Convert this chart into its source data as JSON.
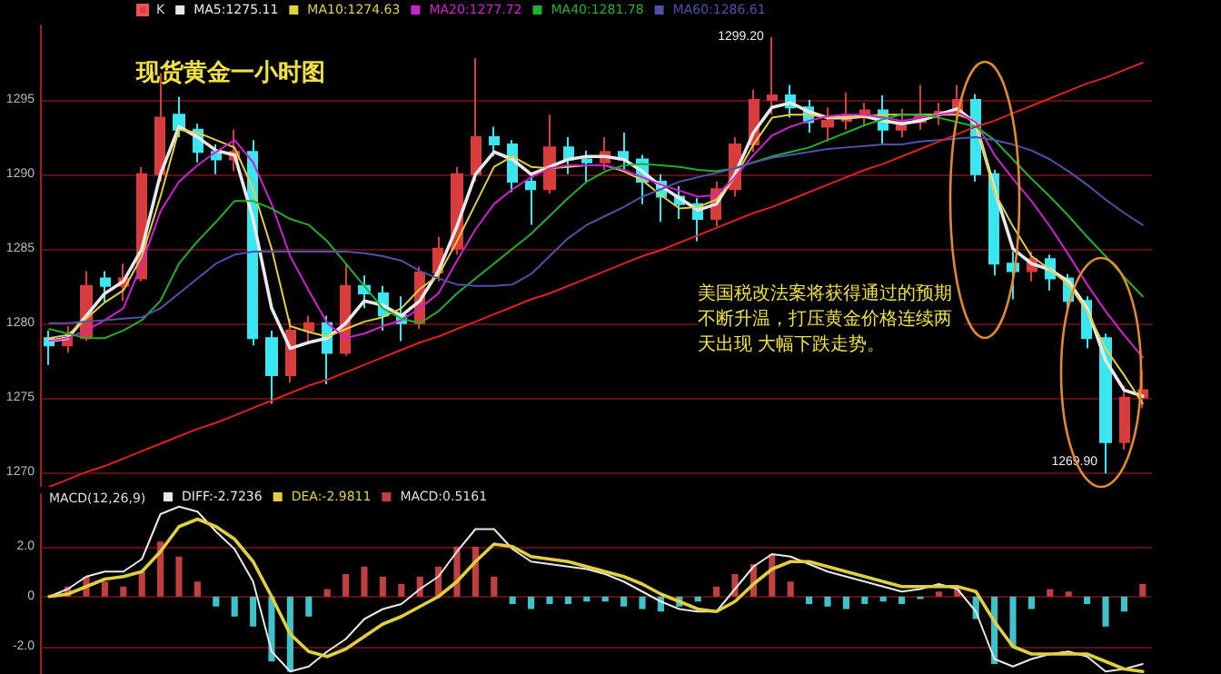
{
  "chart_data": [
    {
      "type": "candlestick",
      "title": "现货黄金一小时图",
      "categories": [
        null,
        null,
        null,
        null,
        null,
        null,
        null,
        null,
        null,
        null,
        null,
        null,
        null,
        null,
        null,
        null,
        null,
        null,
        null,
        null,
        null,
        null,
        null,
        null,
        null,
        null,
        null,
        null,
        null,
        null,
        null,
        null,
        null,
        null,
        null,
        null,
        null,
        null,
        null,
        null,
        null,
        null,
        null,
        null,
        null,
        null,
        null,
        null,
        null,
        null,
        null,
        null,
        null,
        null,
        null,
        null,
        null,
        null,
        null,
        null
      ],
      "ylim": [
        1269,
        1300
      ],
      "yticks": [
        1270,
        1275,
        1280,
        1285,
        1290,
        1295
      ],
      "grid": "y",
      "legend": "top left",
      "tick_labels": "y",
      "marker": "none",
      "line_style": "solid",
      "annotations": [
        "1299.20",
        "1269.90",
        "美国税改法案将获得通过的预期不断升温，打压黄金价格连续两天出现 大幅下跌走势。"
      ],
      "series": [
        {
          "name": "K",
          "ohlc": [
            [
              1279,
              1279.5,
              1277.2,
              1278.5
            ],
            [
              1278.5,
              1279.8,
              1278,
              1279
            ],
            [
              1279,
              1283.5,
              1278.8,
              1282.5
            ],
            [
              1283,
              1283.5,
              1281.4,
              1282.5
            ],
            [
              1282.5,
              1284,
              1281.5,
              1283
            ],
            [
              1283,
              1290.5,
              1282.8,
              1290
            ],
            [
              1290,
              1296.8,
              1289.5,
              1293.8
            ],
            [
              1294,
              1295.2,
              1292.5,
              1293
            ],
            [
              1293,
              1293.4,
              1290.8,
              1291.5
            ],
            [
              1291.5,
              1292,
              1290,
              1291
            ],
            [
              1291,
              1293,
              1290.2,
              1291.5
            ],
            [
              1291.5,
              1292.3,
              1278.5,
              1279
            ],
            [
              1279,
              1279.5,
              1274.6,
              1276.5
            ],
            [
              1276.5,
              1280.3,
              1276,
              1279.5
            ],
            [
              1279.5,
              1280.5,
              1278.8,
              1280
            ],
            [
              1280,
              1280.5,
              1275.9,
              1278
            ],
            [
              1278,
              1284,
              1277.8,
              1282.5
            ],
            [
              1282.5,
              1283.2,
              1281,
              1282
            ],
            [
              1282,
              1282.5,
              1279.5,
              1280.5
            ],
            [
              1280.5,
              1281.8,
              1278.8,
              1280
            ],
            [
              1280,
              1283.8,
              1279.6,
              1283.4
            ],
            [
              1283.4,
              1285.8,
              1282.8,
              1285
            ],
            [
              1285,
              1290.5,
              1284.6,
              1290
            ],
            [
              1290,
              1297.8,
              1289.5,
              1292.5
            ],
            [
              1292.5,
              1293.2,
              1291.2,
              1292
            ],
            [
              1292,
              1292.3,
              1288.8,
              1289.5
            ],
            [
              1289.5,
              1290,
              1286.6,
              1289
            ],
            [
              1289,
              1294,
              1288.7,
              1291.8
            ],
            [
              1291.8,
              1292.5,
              1290,
              1291
            ],
            [
              1291,
              1291.6,
              1289.5,
              1290.8
            ],
            [
              1290.8,
              1292.5,
              1290.3,
              1291.5
            ],
            [
              1291.5,
              1292.8,
              1290.2,
              1291
            ],
            [
              1291,
              1291.3,
              1288,
              1289.5
            ],
            [
              1289.5,
              1290,
              1286.8,
              1288.5
            ],
            [
              1288.5,
              1289.2,
              1287,
              1288
            ],
            [
              1288,
              1288.4,
              1285.5,
              1287
            ],
            [
              1287,
              1289.5,
              1286.5,
              1289
            ],
            [
              1289,
              1292.5,
              1288.5,
              1292
            ],
            [
              1292,
              1295.7,
              1291.5,
              1295
            ],
            [
              1295,
              1299.2,
              1294,
              1295.3
            ],
            [
              1295.3,
              1296,
              1293.8,
              1294.5
            ],
            [
              1294.5,
              1295,
              1292.8,
              1293.5
            ],
            [
              1293.2,
              1294.5,
              1292.2,
              1293.6
            ],
            [
              1293.6,
              1295.5,
              1293,
              1294
            ],
            [
              1294,
              1294.8,
              1293.2,
              1294.3
            ],
            [
              1294.3,
              1295.3,
              1292,
              1293
            ],
            [
              1293,
              1294.4,
              1292.5,
              1293.5
            ],
            [
              1293.5,
              1296,
              1293,
              1294
            ],
            [
              1294,
              1294.8,
              1293.3,
              1294.2
            ],
            [
              1294.2,
              1296,
              1293.8,
              1295
            ],
            [
              1295,
              1295.4,
              1289.5,
              1290
            ],
            [
              1290,
              1290.3,
              1283.2,
              1284
            ],
            [
              1284,
              1284.8,
              1281.6,
              1283.5
            ],
            [
              1283.5,
              1284.8,
              1282.8,
              1284.3
            ],
            [
              1284.3,
              1284.6,
              1282.2,
              1283
            ],
            [
              1283,
              1283.3,
              1280.8,
              1281.5
            ],
            [
              1281.5,
              1281.8,
              1278.3,
              1279
            ],
            [
              1279,
              1279.3,
              1269.9,
              1272
            ],
            [
              1272,
              1275.8,
              1271.5,
              1275
            ],
            [
              1275,
              1276.8,
              1274.3,
              1275.5
            ]
          ],
          "colors": [
            "#3ce6f0",
            "#d83c3c",
            "#d83c3c",
            "#3ce6f0",
            "#d83c3c",
            "#d83c3c",
            "#d83c3c",
            "#3ce6f0",
            "#3ce6f0",
            "#3ce6f0",
            "#d83c3c",
            "#3ce6f0",
            "#3ce6f0",
            "#d83c3c",
            "#d83c3c",
            "#3ce6f0",
            "#d83c3c",
            "#3ce6f0",
            "#3ce6f0",
            "#3ce6f0",
            "#d83c3c",
            "#d83c3c",
            "#d83c3c",
            "#d83c3c",
            "#3ce6f0",
            "#3ce6f0",
            "#3ce6f0",
            "#d83c3c",
            "#3ce6f0",
            "#3ce6f0",
            "#d83c3c",
            "#3ce6f0",
            "#3ce6f0",
            "#3ce6f0",
            "#3ce6f0",
            "#3ce6f0",
            "#d83c3c",
            "#d83c3c",
            "#d83c3c",
            "#d83c3c",
            "#3ce6f0",
            "#3ce6f0",
            "#d83c3c",
            "#d83c3c",
            "#d83c3c",
            "#3ce6f0",
            "#d83c3c",
            "#d83c3c",
            "#d83c3c",
            "#d83c3c",
            "#3ce6f0",
            "#3ce6f0",
            "#3ce6f0",
            "#d83c3c",
            "#3ce6f0",
            "#3ce6f0",
            "#3ce6f0",
            "#3ce6f0",
            "#d83c3c",
            "#d83c3c"
          ]
        },
        {
          "type": "line",
          "name": "MA5:1275.11",
          "color": "#e8e8e8",
          "values": [
            1278.8,
            1279,
            1280.5,
            1282,
            1282.8,
            1285,
            1290,
            1293.2,
            1292.5,
            1291.6,
            1291.3,
            1287,
            1281,
            1278.3,
            1278.7,
            1279,
            1280,
            1281.5,
            1281.2,
            1280.5,
            1281.5,
            1283.5,
            1286.5,
            1290,
            1291.5,
            1291,
            1290,
            1290.5,
            1291,
            1291.2,
            1291.2,
            1291,
            1290.2,
            1289.2,
            1288.4,
            1287.6,
            1288,
            1290,
            1292.8,
            1294.5,
            1294.8,
            1294.2,
            1293.8,
            1293.8,
            1293.9,
            1293.6,
            1293.4,
            1293.6,
            1294,
            1294.4,
            1293.4,
            1289,
            1285,
            1284,
            1283.6,
            1282.8,
            1281,
            1277.5,
            1275.5,
            1275.1
          ]
        },
        {
          "type": "line",
          "name": "MA10:1274.63",
          "color": "#e0d040",
          "values": [
            1279,
            1279.2,
            1280.3,
            1281.4,
            1282.2,
            1284.5,
            1288.5,
            1293,
            1292.8,
            1292.3,
            1291.8,
            1289,
            1285,
            1279.8,
            1279.4,
            1279.1,
            1279.6,
            1280.1,
            1280.4,
            1281,
            1282.3,
            1283.2,
            1285.5,
            1288,
            1290.5,
            1291.2,
            1290.5,
            1290.4,
            1290.5,
            1290.6,
            1290.6,
            1290.2,
            1289.6,
            1288.6,
            1287.7,
            1287.8,
            1288.3,
            1289.8,
            1292,
            1293.8,
            1294,
            1294,
            1293.8,
            1293.8,
            1293.9,
            1294,
            1294,
            1294,
            1294,
            1294,
            1293.6,
            1288.8,
            1286.5,
            1284.5,
            1283.6,
            1282.6,
            1280.8,
            1278.3,
            1276.5,
            1274.6
          ]
        },
        {
          "type": "line",
          "name": "MA20:1277.72",
          "color": "#d020d0",
          "values": [
            1278.8,
            1279,
            1279.5,
            1280.2,
            1281,
            1284,
            1287.5,
            1289.5,
            1290.6,
            1291.5,
            1292.3,
            1290.8,
            1288,
            1284.5,
            1282.2,
            1280,
            1279,
            1279.3,
            1279.8,
            1280.2,
            1281,
            1282,
            1284.2,
            1286.3,
            1288,
            1289,
            1289.8,
            1290.4,
            1290.6,
            1290.6,
            1290.6,
            1290.3,
            1289.8,
            1289.3,
            1288.9,
            1288.5,
            1288.6,
            1289.8,
            1291.3,
            1292.6,
            1293.2,
            1293.6,
            1293.9,
            1294,
            1294,
            1293.8,
            1293.6,
            1293.8,
            1294,
            1294.2,
            1293.5,
            1291.3,
            1289.7,
            1288.2,
            1286.5,
            1284.6,
            1282.6,
            1280.8,
            1279.2,
            1277.7
          ]
        },
        {
          "type": "line",
          "name": "MA40:1281.78",
          "color": "#20b030",
          "values": [
            1279.6,
            1279.3,
            1279,
            1279,
            1279.5,
            1280.2,
            1281.5,
            1284,
            1285.5,
            1286.8,
            1288.2,
            1288.2,
            1287.7,
            1287,
            1286.6,
            1285.5,
            1284,
            1282.5,
            1281,
            1280.3,
            1280,
            1280.8,
            1282,
            1283,
            1284,
            1285,
            1286,
            1287.2,
            1288.4,
            1289.5,
            1290.2,
            1290.6,
            1290.7,
            1290.6,
            1290.5,
            1290.3,
            1290.2,
            1290.4,
            1290.8,
            1291.2,
            1291.5,
            1291.8,
            1292.3,
            1292.8,
            1293.3,
            1293.7,
            1294,
            1294,
            1293.8,
            1293.5,
            1293.2,
            1292.3,
            1291,
            1289.7,
            1288.5,
            1287.2,
            1285.8,
            1284.5,
            1283.1,
            1281.8
          ]
        },
        {
          "type": "line",
          "name": "MA60:1286.61",
          "color": "#5050a8",
          "values": [
            1280,
            1280,
            1280.1,
            1280.2,
            1280.3,
            1280.4,
            1281,
            1282,
            1283,
            1284,
            1284.6,
            1284.8,
            1284.8,
            1284.8,
            1284.8,
            1284.8,
            1284.8,
            1284.7,
            1284.5,
            1284.2,
            1283.5,
            1283,
            1282.6,
            1282.5,
            1282.5,
            1282.6,
            1283.3,
            1284.5,
            1285.7,
            1286.6,
            1287.2,
            1287.8,
            1288.5,
            1289,
            1289.5,
            1289.8,
            1290.1,
            1290.4,
            1290.8,
            1291.1,
            1291.3,
            1291.5,
            1291.7,
            1291.8,
            1291.9,
            1292,
            1292,
            1292.2,
            1292.3,
            1292.4,
            1292.5,
            1292.3,
            1292,
            1291.6,
            1291,
            1290.2,
            1289.3,
            1288.3,
            1287.4,
            1286.6
          ]
        },
        {
          "type": "line",
          "color": "#e02020",
          "values": [
            1269.0,
            1269.5,
            1270.0,
            1270.4,
            1270.9,
            1271.4,
            1271.9,
            1272.4,
            1272.9,
            1273.3,
            1273.8,
            1274.3,
            1274.8,
            1275.3,
            1275.8,
            1276.2,
            1276.7,
            1277.2,
            1277.7,
            1278.2,
            1278.7,
            1279.1,
            1279.6,
            1280.1,
            1280.6,
            1281.1,
            1281.6,
            1282.0,
            1282.5,
            1283.0,
            1283.5,
            1284.0,
            1284.5,
            1284.9,
            1285.4,
            1285.9,
            1286.4,
            1286.9,
            1287.4,
            1287.8,
            1288.3,
            1288.8,
            1289.3,
            1289.8,
            1290.3,
            1290.7,
            1291.2,
            1291.7,
            1292.2,
            1292.7,
            1293.2,
            1293.6,
            1294.1,
            1294.6,
            1295.1,
            1295.6,
            1296.1,
            1296.5,
            1297.0,
            1297.5
          ]
        }
      ]
    },
    {
      "type": "bar",
      "title": "MACD(12,26,9)",
      "categories": [
        null,
        null,
        null,
        null,
        null,
        null,
        null,
        null,
        null,
        null,
        null,
        null,
        null,
        null,
        null,
        null,
        null,
        null,
        null,
        null,
        null,
        null,
        null,
        null,
        null,
        null,
        null,
        null,
        null,
        null,
        null,
        null,
        null,
        null,
        null,
        null,
        null,
        null,
        null,
        null,
        null,
        null,
        null,
        null,
        null,
        null,
        null,
        null,
        null,
        null,
        null,
        null,
        null,
        null,
        null,
        null,
        null,
        null,
        null,
        null
      ],
      "ylim": [
        -3.1,
        4.1
      ],
      "yticks": [
        {
          "value": -2,
          "label": "-2.0"
        },
        0,
        {
          "value": 2,
          "label": "2.0"
        }
      ],
      "grid": "y",
      "legend": "top left",
      "tick_labels": "y",
      "marker": "none",
      "line_style": "solid",
      "series": [
        {
          "type": "line",
          "name": "DIFF:-2.7236",
          "color": "#e8e8e8",
          "values": [
            0,
            0.3,
            0.8,
            1.0,
            1.0,
            1.5,
            3.3,
            3.6,
            3.4,
            2.6,
            1.9,
            0.6,
            -2.2,
            -3.0,
            -2.8,
            -2.2,
            -1.7,
            -0.9,
            -0.5,
            -0.3,
            0.3,
            0.8,
            1.8,
            2.7,
            2.7,
            1.9,
            1.4,
            1.3,
            1.2,
            1.1,
            0.9,
            0.6,
            0.2,
            -0.2,
            -0.5,
            -0.6,
            -0.6,
            0.3,
            1.2,
            1.7,
            1.6,
            1.3,
            1.0,
            0.8,
            0.6,
            0.4,
            0.2,
            0.3,
            0.5,
            0.3,
            -0.6,
            -2.5,
            -2.8,
            -2.5,
            -2.3,
            -2.2,
            -2.4,
            -3.0,
            -2.9,
            -2.7
          ]
        },
        {
          "type": "line",
          "name": "DEA:-2.9811",
          "color": "#e0d040",
          "values": [
            0,
            0.1,
            0.4,
            0.7,
            0.8,
            1.0,
            1.8,
            2.8,
            3.1,
            2.8,
            2.3,
            1.4,
            0,
            -1.5,
            -2.2,
            -2.4,
            -2.1,
            -1.6,
            -1.1,
            -0.8,
            -0.4,
            0,
            0.6,
            1.4,
            2.1,
            2.0,
            1.6,
            1.5,
            1.4,
            1.2,
            1.0,
            0.8,
            0.5,
            0.1,
            -0.2,
            -0.5,
            -0.6,
            -0.2,
            0.5,
            1.1,
            1.4,
            1.4,
            1.2,
            1.0,
            0.8,
            0.6,
            0.4,
            0.4,
            0.4,
            0.4,
            0.2,
            -1.0,
            -2.0,
            -2.3,
            -2.3,
            -2.3,
            -2.3,
            -2.6,
            -2.9,
            -3.0
          ]
        },
        {
          "name": "MACD:0.5161",
          "values": [
            0,
            0.4,
            0.8,
            0.6,
            0.4,
            1.0,
            2.2,
            1.6,
            0.6,
            -0.4,
            -0.8,
            -1.2,
            -2.6,
            -3.0,
            -0.8,
            0.3,
            0.9,
            1.2,
            0.8,
            0.5,
            0.8,
            1.2,
            2.0,
            2.0,
            0.8,
            -0.3,
            -0.5,
            -0.3,
            -0.3,
            -0.2,
            -0.2,
            -0.4,
            -0.5,
            -0.6,
            -0.4,
            -0.2,
            0.4,
            0.9,
            1.3,
            1.7,
            0.6,
            -0.3,
            -0.4,
            -0.5,
            -0.3,
            -0.2,
            -0.3,
            -0.1,
            0.2,
            0.3,
            -0.9,
            -2.7,
            -2.0,
            -0.5,
            0.3,
            0.2,
            -0.3,
            -1.2,
            -0.6,
            0.5
          ],
          "colors": [
            "#c04040",
            "#c04040",
            "#c04040",
            "#c04040",
            "#c04040",
            "#c04040",
            "#c04040",
            "#c04040",
            "#c04040",
            "#40c0c8",
            "#40c0c8",
            "#40c0c8",
            "#40c0c8",
            "#40c0c8",
            "#40c0c8",
            "#c04040",
            "#c04040",
            "#c04040",
            "#c04040",
            "#c04040",
            "#c04040",
            "#c04040",
            "#c04040",
            "#c04040",
            "#c04040",
            "#40c0c8",
            "#40c0c8",
            "#40c0c8",
            "#40c0c8",
            "#40c0c8",
            "#40c0c8",
            "#40c0c8",
            "#40c0c8",
            "#40c0c8",
            "#40c0c8",
            "#40c0c8",
            "#c04040",
            "#c04040",
            "#c04040",
            "#c04040",
            "#c04040",
            "#40c0c8",
            "#40c0c8",
            "#40c0c8",
            "#40c0c8",
            "#40c0c8",
            "#40c0c8",
            "#40c0c8",
            "#c04040",
            "#c04040",
            "#40c0c8",
            "#40c0c8",
            "#40c0c8",
            "#40c0c8",
            "#c04040",
            "#c04040",
            "#40c0c8",
            "#40c0c8",
            "#40c0c8",
            "#c04040"
          ]
        }
      ]
    }
  ]
}
